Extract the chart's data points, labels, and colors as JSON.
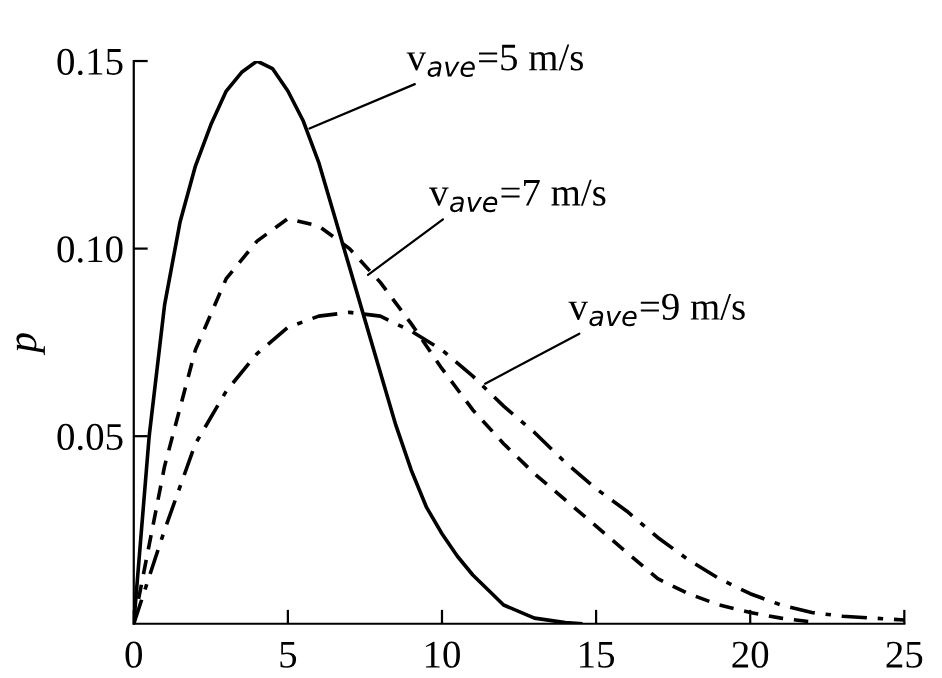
{
  "chart_data": {
    "type": "line",
    "ylabel": "p",
    "xlim": [
      0,
      25
    ],
    "ylim": [
      0,
      0.15
    ],
    "xticks": [
      0,
      5,
      10,
      15,
      20,
      25
    ],
    "yticks": [
      0.05,
      {
        "value": 0.1,
        "label": "0.10"
      },
      0.15
    ],
    "grid": false,
    "legend": false,
    "marker": "none",
    "series": [
      {
        "color": "#000000",
        "line_style": "solid",
        "x": [
          0,
          0.5,
          1,
          1.5,
          2,
          2.5,
          3,
          3.5,
          4,
          4.5,
          5,
          5.5,
          6,
          6.5,
          7,
          7.5,
          8,
          8.5,
          9,
          9.5,
          10,
          10.5,
          11,
          12,
          13,
          14,
          14.5
        ],
        "values": [
          0,
          0.05,
          0.085,
          0.107,
          0.122,
          0.133,
          0.142,
          0.147,
          0.15,
          0.148,
          0.142,
          0.134,
          0.123,
          0.109,
          0.095,
          0.081,
          0.067,
          0.053,
          0.041,
          0.031,
          0.024,
          0.018,
          0.013,
          0.005,
          0.0015,
          0.0003,
          0
        ]
      },
      {
        "color": "#000000",
        "line_style": "dashed",
        "x": [
          0,
          1,
          2,
          3,
          4,
          5,
          6,
          7,
          8,
          9,
          10,
          11,
          12,
          13,
          14,
          15,
          16,
          17,
          18,
          19,
          20,
          21,
          22
        ],
        "values": [
          0,
          0.042,
          0.073,
          0.092,
          0.102,
          0.108,
          0.106,
          0.1,
          0.091,
          0.08,
          0.068,
          0.057,
          0.048,
          0.04,
          0.033,
          0.026,
          0.019,
          0.012,
          0.008,
          0.005,
          0.003,
          0.0015,
          0.0005
        ]
      },
      {
        "color": "#000000",
        "line_style": "dashdot",
        "x": [
          0,
          1,
          2,
          3,
          4,
          5,
          6,
          7,
          8,
          9,
          10,
          11,
          12,
          13,
          14,
          15,
          16,
          17,
          18,
          19,
          20,
          21,
          22,
          23,
          24,
          25
        ],
        "values": [
          0,
          0.025,
          0.048,
          0.062,
          0.072,
          0.079,
          0.082,
          0.083,
          0.082,
          0.078,
          0.073,
          0.066,
          0.058,
          0.051,
          0.043,
          0.036,
          0.03,
          0.023,
          0.017,
          0.012,
          0.008,
          0.005,
          0.003,
          0.002,
          0.0015,
          0.001
        ]
      }
    ],
    "annotations": [
      {
        "text": "v$_{ave}$=5 m/s",
        "x": 5.7,
        "y": 0.132
      },
      {
        "text": "v$_{ave}$=7 m/s",
        "x": 7.6,
        "y": 0.093
      },
      {
        "text": "v$_{ave}$=9 m/s",
        "x": 11.4,
        "y": 0.064
      }
    ]
  }
}
